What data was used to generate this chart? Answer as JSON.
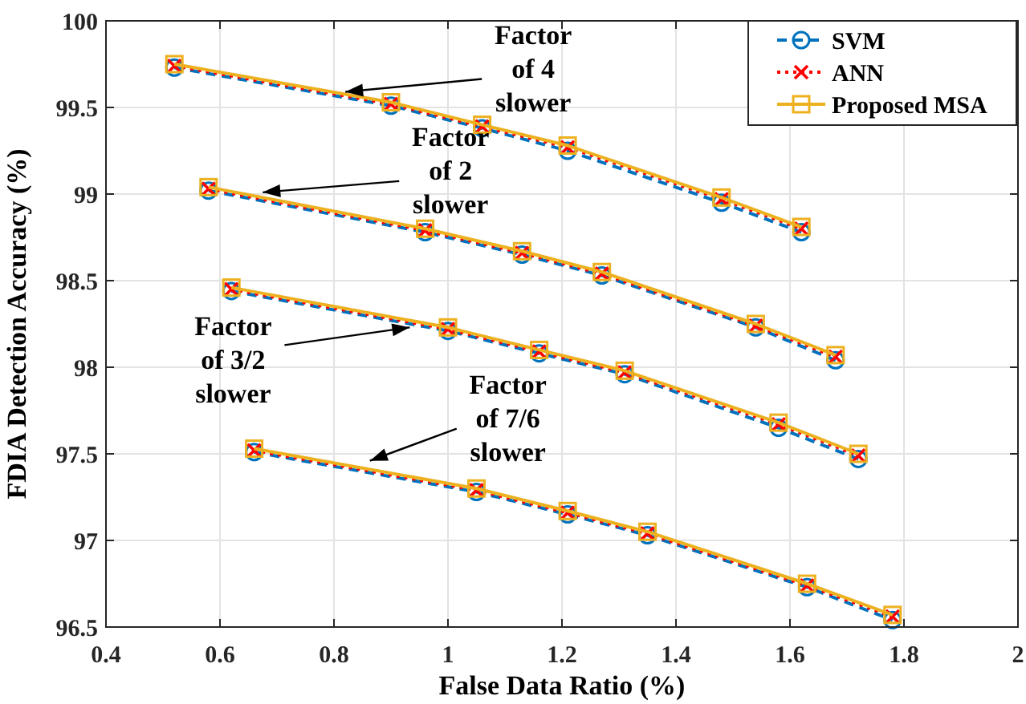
{
  "chart_data": {
    "type": "line",
    "xlabel": "False Data Ratio (%)",
    "ylabel": "FDIA Detection Accuracy (%)",
    "xlim": [
      0.4,
      2
    ],
    "xticks": [
      0.4,
      0.6,
      0.8,
      1,
      1.2,
      1.4,
      1.6,
      1.8,
      2
    ],
    "ylim": [
      96.5,
      100
    ],
    "yticks": [
      96.5,
      97,
      97.5,
      98,
      98.5,
      99,
      99.5,
      100
    ],
    "grid": true,
    "legend": "top right",
    "series": [
      {
        "name": "SVM",
        "color": "#0072bd",
        "marker": "circle",
        "line_style": "dashed",
        "x": [
          0.52,
          0.9,
          1.06,
          1.21,
          1.48,
          1.62,
          null,
          0.58,
          0.96,
          1.13,
          1.27,
          1.54,
          1.68,
          null,
          0.62,
          1.0,
          1.16,
          1.31,
          1.58,
          1.72,
          null,
          0.66,
          1.05,
          1.21,
          1.35,
          1.63,
          1.78
        ],
        "values": [
          99.73,
          99.51,
          99.38,
          99.25,
          98.95,
          98.78,
          null,
          99.02,
          98.78,
          98.65,
          98.53,
          98.23,
          98.04,
          null,
          98.44,
          98.21,
          98.08,
          97.96,
          97.65,
          97.47,
          null,
          97.51,
          97.28,
          97.15,
          97.03,
          96.73,
          96.54
        ]
      },
      {
        "name": "ANN",
        "color": "#ff0000",
        "marker": "cross",
        "line_style": "dotted",
        "x": [
          0.52,
          0.9,
          1.06,
          1.21,
          1.48,
          1.62,
          null,
          0.58,
          0.96,
          1.13,
          1.27,
          1.54,
          1.68,
          null,
          0.62,
          1.0,
          1.16,
          1.31,
          1.58,
          1.72,
          null,
          0.66,
          1.05,
          1.21,
          1.35,
          1.63,
          1.78
        ],
        "values": [
          99.74,
          99.52,
          99.39,
          99.27,
          98.97,
          98.8,
          null,
          99.03,
          98.79,
          98.66,
          98.54,
          98.24,
          98.06,
          null,
          98.45,
          98.22,
          98.09,
          97.97,
          97.67,
          97.49,
          null,
          97.52,
          97.29,
          97.16,
          97.04,
          96.74,
          96.56
        ]
      },
      {
        "name": "Proposed MSA",
        "color": "#edb120",
        "marker": "square",
        "line_style": "solid",
        "x": [
          0.52,
          0.9,
          1.06,
          1.21,
          1.48,
          1.62,
          null,
          0.58,
          0.96,
          1.13,
          1.27,
          1.54,
          1.68,
          null,
          0.62,
          1.0,
          1.16,
          1.31,
          1.58,
          1.72,
          null,
          0.66,
          1.05,
          1.21,
          1.35,
          1.63,
          1.78
        ],
        "values": [
          99.75,
          99.53,
          99.4,
          99.28,
          98.98,
          98.81,
          null,
          99.04,
          98.8,
          98.67,
          98.55,
          98.25,
          98.07,
          null,
          98.46,
          98.23,
          98.1,
          97.98,
          97.68,
          97.5,
          null,
          97.53,
          97.3,
          97.17,
          97.05,
          96.75,
          96.57
        ]
      }
    ],
    "annotations": [
      {
        "text": "Factor\nof 4\nslower",
        "x": 0.82,
        "y": 99.59
      },
      {
        "text": "Factor\nof 2\nslower",
        "x": 0.675,
        "y": 99.01
      },
      {
        "text": "Factor\nof 3/2\nslower",
        "x": 0.933,
        "y": 98.23
      },
      {
        "text": "Factor\nof 7/6\nslower",
        "x": 0.863,
        "y": 97.46
      }
    ]
  }
}
